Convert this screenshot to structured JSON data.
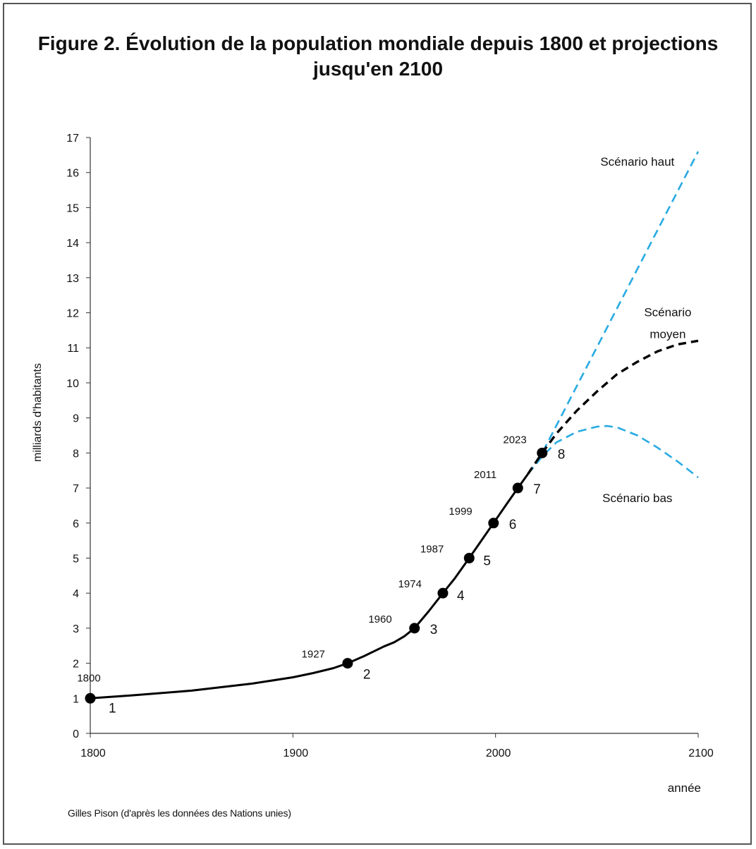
{
  "chart_data": {
    "type": "line",
    "title": "Figure 2. Évolution de la population mondiale depuis 1800 et projections jusqu'en 2100",
    "xlabel": "année",
    "ylabel": "milliards d'habitants",
    "source": "Gilles Pison (d'après les données des Nations unies)",
    "xlim": [
      1800,
      2100
    ],
    "ylim": [
      0,
      17
    ],
    "xticks": [
      1800,
      1900,
      2000,
      2100
    ],
    "yticks": [
      0,
      1,
      2,
      3,
      4,
      5,
      6,
      7,
      8,
      9,
      10,
      11,
      12,
      13,
      14,
      15,
      16,
      17
    ],
    "grid": false,
    "colors": {
      "historical": "#000000",
      "high": "#29abe2",
      "medium": "#000000",
      "low": "#29abe2"
    },
    "milestones": [
      {
        "year": 1800,
        "value": 1,
        "year_label": "1800",
        "value_label": "1"
      },
      {
        "year": 1927,
        "value": 2,
        "year_label": "1927",
        "value_label": "2"
      },
      {
        "year": 1960,
        "value": 3,
        "year_label": "1960",
        "value_label": "3"
      },
      {
        "year": 1974,
        "value": 4,
        "year_label": "1974",
        "value_label": "4"
      },
      {
        "year": 1987,
        "value": 5,
        "year_label": "1987",
        "value_label": "5"
      },
      {
        "year": 1999,
        "value": 6,
        "year_label": "1999",
        "value_label": "6"
      },
      {
        "year": 2011,
        "value": 7,
        "year_label": "2011",
        "value_label": "7"
      },
      {
        "year": 2023,
        "value": 8,
        "year_label": "2023",
        "value_label": "8"
      }
    ],
    "series": [
      {
        "key": "historical",
        "style": "solid",
        "x": [
          1800,
          1820,
          1850,
          1880,
          1900,
          1910,
          1920,
          1927,
          1935,
          1945,
          1950,
          1955,
          1960,
          1967,
          1974,
          1980,
          1987,
          1993,
          1999,
          2005,
          2011,
          2016
        ],
        "y": [
          1,
          1.08,
          1.22,
          1.42,
          1.6,
          1.72,
          1.86,
          2,
          2.2,
          2.48,
          2.6,
          2.77,
          3,
          3.48,
          4,
          4.43,
          5,
          5.5,
          6,
          6.5,
          7,
          7.4
        ]
      },
      {
        "key": "high",
        "name": "Scénario haut",
        "style": "dashed",
        "x": [
          2016,
          2023,
          2100
        ],
        "y": [
          7.4,
          8,
          16.6
        ]
      },
      {
        "key": "medium",
        "name": "Scénario moyen",
        "style": "dashed",
        "x": [
          2016,
          2023,
          2030,
          2040,
          2050,
          2060,
          2070,
          2080,
          2090,
          2100
        ],
        "y": [
          7.4,
          8,
          8.55,
          9.2,
          9.75,
          10.25,
          10.6,
          10.9,
          11.1,
          11.2
        ]
      },
      {
        "key": "low",
        "name": "Scénario bas",
        "style": "dashed",
        "x": [
          2016,
          2023,
          2030,
          2040,
          2050,
          2055,
          2060,
          2070,
          2080,
          2090,
          2100
        ],
        "y": [
          7.4,
          7.9,
          8.3,
          8.6,
          8.75,
          8.77,
          8.73,
          8.5,
          8.15,
          7.75,
          7.3
        ]
      }
    ],
    "annotations": [
      {
        "series": "high",
        "lines": [
          "Scénario haut"
        ],
        "x": 2070,
        "y": 16.2
      },
      {
        "series": "medium",
        "lines": [
          "Scénario",
          "moyen"
        ],
        "x": 2085,
        "y": 11.9
      },
      {
        "series": "low",
        "lines": [
          "Scénario bas"
        ],
        "x": 2070,
        "y": 6.6
      }
    ]
  }
}
